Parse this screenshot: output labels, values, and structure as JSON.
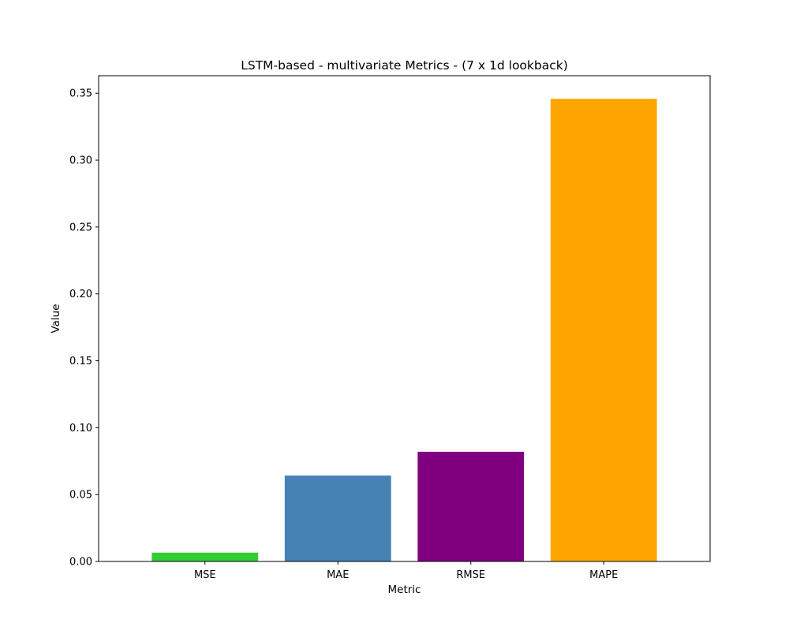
{
  "chart_data": {
    "type": "bar",
    "title": "LSTM-based - multivariate Metrics - (7 x 1d lookback)",
    "xlabel": "Metric",
    "ylabel": "Value",
    "categories": [
      "MSE",
      "MAE",
      "RMSE",
      "MAPE"
    ],
    "values": [
      0.0066,
      0.0642,
      0.082,
      0.3458
    ],
    "bar_colors": [
      "#32cd32",
      "#4682b4",
      "#800080",
      "#ffa500"
    ],
    "ylim": [
      0,
      0.3631
    ],
    "yticks": [
      0.0,
      0.05,
      0.1,
      0.15,
      0.2,
      0.25,
      0.3,
      0.35
    ],
    "ytick_labels": [
      "0.00",
      "0.05",
      "0.10",
      "0.15",
      "0.20",
      "0.25",
      "0.30",
      "0.35"
    ],
    "grid": false,
    "legend": "none"
  }
}
